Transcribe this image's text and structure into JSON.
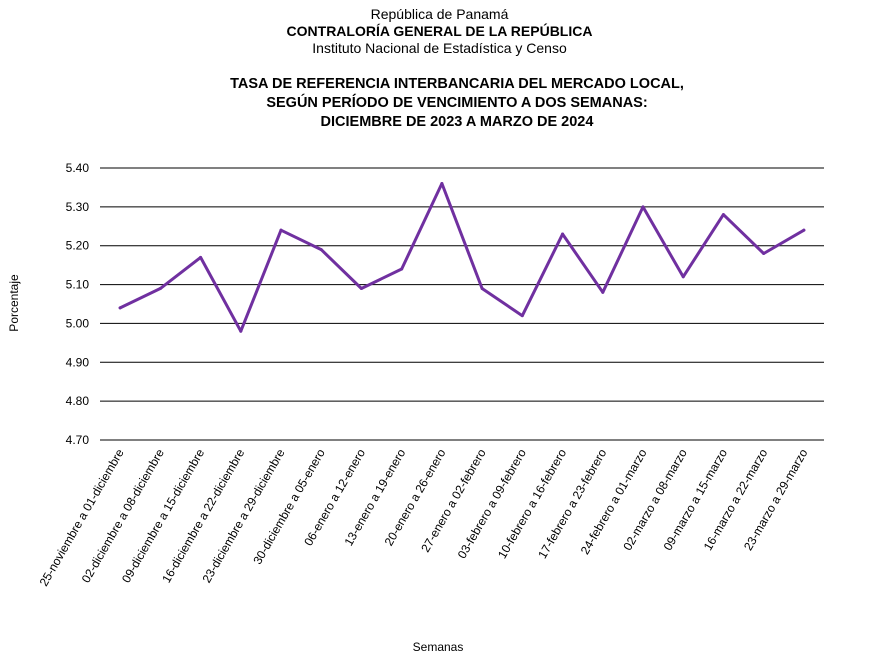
{
  "header": {
    "line1": "República de Panamá",
    "line2": "CONTRALORÍA GENERAL DE LA REPÚBLICA",
    "line3": "Instituto Nacional de Estadística y Censo"
  },
  "chart_data": {
    "type": "line",
    "title_lines": [
      "TASA DE REFERENCIA INTERBANCARIA DEL MERCADO LOCAL,",
      "SEGÚN PERÍODO DE VENCIMIENTO A DOS SEMANAS:",
      "DICIEMBRE DE 2023 A MARZO DE 2024"
    ],
    "xlabel": "Semanas",
    "ylabel": "Porcentaje",
    "ylim": [
      4.7,
      5.4
    ],
    "yticks": [
      "4.70",
      "4.80",
      "4.90",
      "5.00",
      "5.10",
      "5.20",
      "5.30",
      "5.40"
    ],
    "grid": true,
    "legend": "none",
    "series_color": "#7030a0",
    "categories": [
      "25-noviembre a 01-diciembre",
      "02-diciembre a 08-diciembre",
      "09-diciembre a 15-diciembre",
      "16-diciembre a 22-diciembre",
      "23-diciembre a 29-diciembre",
      "30-diciembre a 05-enero",
      "06-enero a 12-enero",
      "13-enero a 19-enero",
      "20-enero a 26-enero",
      "27-enero a 02-febrero",
      "03-febrero a 09-febrero",
      "10-febrero a 16-febrero",
      "17-febrero a 23-febrero",
      "24-febrero a 01-marzo",
      "02-marzo a 08-marzo",
      "09-marzo a 15-marzo",
      "16-marzo a 22-marzo",
      "23-marzo a 29-marzo"
    ],
    "series": [
      {
        "values": [
          5.04,
          5.09,
          5.17,
          4.98,
          5.24,
          5.19,
          5.09,
          5.14,
          5.36,
          5.09,
          5.02,
          5.23,
          5.08,
          5.3,
          5.12,
          5.28,
          5.18,
          5.24
        ]
      }
    ]
  }
}
